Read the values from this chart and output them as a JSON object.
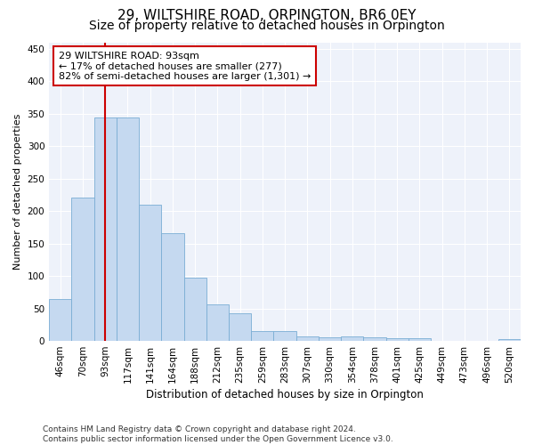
{
  "title1": "29, WILTSHIRE ROAD, ORPINGTON, BR6 0EY",
  "title2": "Size of property relative to detached houses in Orpington",
  "xlabel": "Distribution of detached houses by size in Orpington",
  "ylabel": "Number of detached properties",
  "categories": [
    "46sqm",
    "70sqm",
    "93sqm",
    "117sqm",
    "141sqm",
    "164sqm",
    "188sqm",
    "212sqm",
    "235sqm",
    "259sqm",
    "283sqm",
    "307sqm",
    "330sqm",
    "354sqm",
    "378sqm",
    "401sqm",
    "425sqm",
    "449sqm",
    "473sqm",
    "496sqm",
    "520sqm"
  ],
  "values": [
    65,
    221,
    344,
    344,
    210,
    166,
    97,
    56,
    43,
    15,
    15,
    7,
    6,
    7,
    5,
    4,
    4,
    0,
    0,
    0,
    3
  ],
  "bar_color": "#c5d9f0",
  "bar_edge_color": "#7aadd4",
  "vline_x": 2,
  "vline_color": "#cc0000",
  "annotation_line1": "29 WILTSHIRE ROAD: 93sqm",
  "annotation_line2": "← 17% of detached houses are smaller (277)",
  "annotation_line3": "82% of semi-detached houses are larger (1,301) →",
  "annotation_box_color": "#ffffff",
  "annotation_box_edge_color": "#cc0000",
  "ylim": [
    0,
    460
  ],
  "yticks": [
    0,
    50,
    100,
    150,
    200,
    250,
    300,
    350,
    400,
    450
  ],
  "background_color": "#eef2fa",
  "footer_line1": "Contains HM Land Registry data © Crown copyright and database right 2024.",
  "footer_line2": "Contains public sector information licensed under the Open Government Licence v3.0.",
  "title1_fontsize": 11,
  "title2_fontsize": 10,
  "xlabel_fontsize": 8.5,
  "ylabel_fontsize": 8,
  "tick_fontsize": 7.5,
  "annotation_fontsize": 8,
  "footer_fontsize": 6.5
}
